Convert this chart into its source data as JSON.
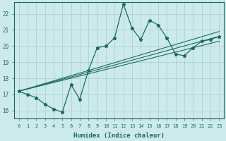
{
  "xlabel": "Humidex (Indice chaleur)",
  "bg_color": "#cceaea",
  "grid_color": "#aacccc",
  "line_color": "#1a6b5a",
  "xlim": [
    -0.5,
    23.5
  ],
  "ylim": [
    15.5,
    22.7
  ],
  "yticks": [
    16,
    17,
    18,
    19,
    20,
    21,
    22
  ],
  "xticks": [
    0,
    1,
    2,
    3,
    4,
    5,
    6,
    7,
    8,
    9,
    10,
    11,
    12,
    13,
    14,
    15,
    16,
    17,
    18,
    19,
    20,
    21,
    22,
    23
  ],
  "main_series": [
    17.2,
    17.0,
    16.8,
    16.4,
    16.1,
    15.9,
    17.6,
    16.7,
    18.5,
    19.9,
    20.0,
    20.5,
    22.6,
    21.1,
    20.4,
    21.6,
    21.3,
    20.5,
    19.5,
    19.4,
    19.9,
    20.3,
    20.4,
    20.6
  ],
  "trend_lines": [
    [
      [
        0,
        23
      ],
      [
        17.2,
        20.9
      ]
    ],
    [
      [
        0,
        23
      ],
      [
        17.2,
        20.6
      ]
    ],
    [
      [
        0,
        23
      ],
      [
        17.2,
        20.3
      ]
    ]
  ]
}
